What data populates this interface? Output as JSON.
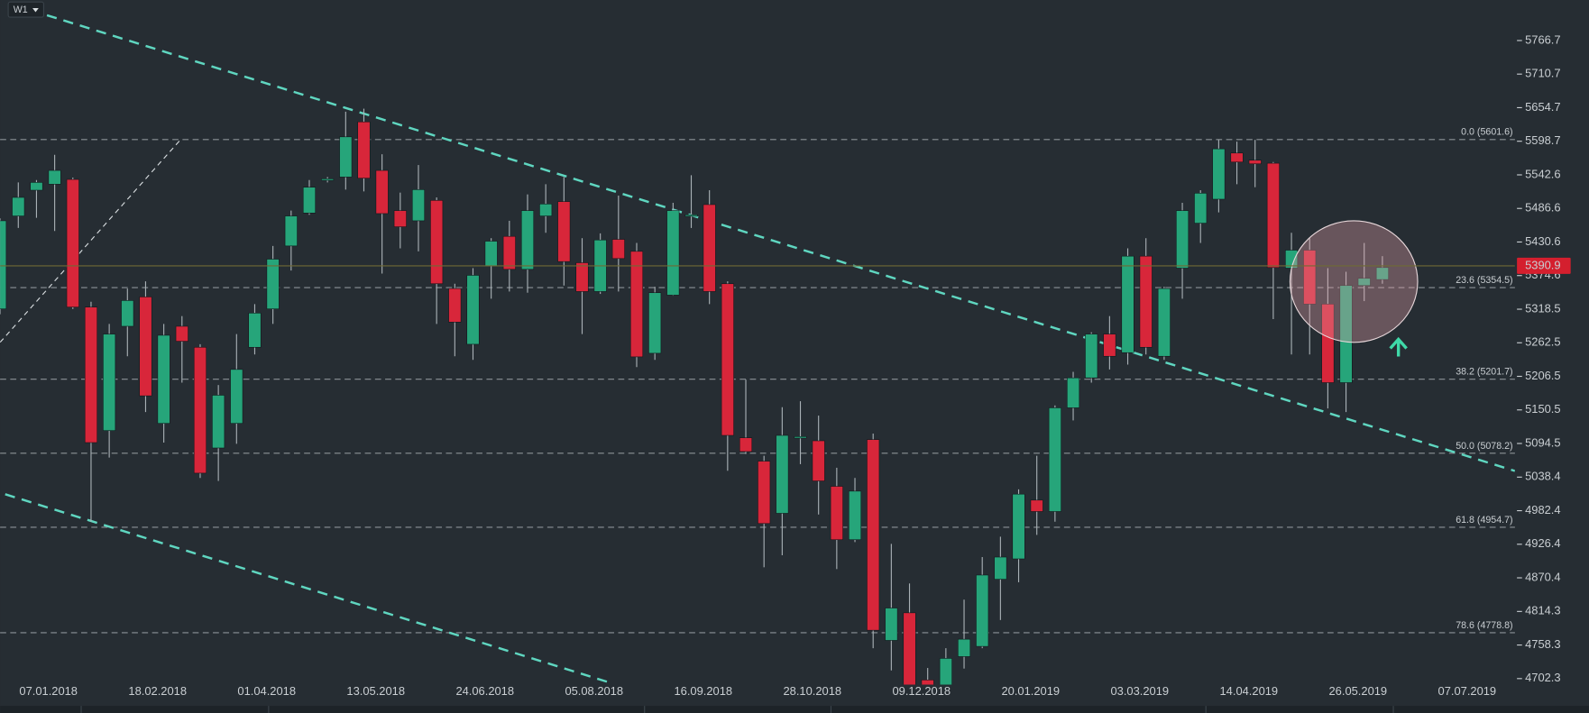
{
  "timeframe": "W1",
  "chart_data": {
    "type": "candlestick",
    "categories": [
      null,
      "07.01.2018",
      null,
      null,
      null,
      null,
      null,
      "18.02.2018",
      null,
      null,
      null,
      null,
      null,
      "01.04.2018",
      null,
      null,
      null,
      null,
      null,
      "13.05.2018",
      null,
      null,
      null,
      null,
      null,
      "24.06.2018",
      null,
      null,
      null,
      null,
      null,
      "05.08.2018",
      null,
      null,
      null,
      null,
      null,
      "16.09.2018",
      null,
      null,
      null,
      null,
      null,
      "28.10.2018",
      null,
      null,
      null,
      null,
      null,
      "09.12.2018",
      null,
      null,
      null,
      null,
      null,
      "20.01.2019",
      null,
      null,
      null,
      null,
      null,
      "03.03.2019",
      null,
      null,
      null,
      null,
      null,
      "14.04.2019",
      null,
      null,
      null,
      null,
      null,
      "26.05.2019",
      null,
      null,
      null,
      null,
      null,
      "07.07.2019"
    ],
    "open": [
      5319,
      5474,
      5517,
      5527,
      5535,
      5322,
      5116,
      5290,
      5339,
      5128,
      5290,
      5255,
      5087,
      5128,
      5255,
      5319,
      5424,
      5479,
      5534,
      5539,
      5631,
      5550,
      5483,
      5466,
      5500,
      5353,
      5260,
      5391,
      5440,
      5385,
      5474,
      5498,
      5396,
      5348,
      5435,
      5415,
      5245,
      5342,
      5474,
      5493,
      5361,
      5104,
      5065,
      4978,
      5104,
      5099,
      5023,
      4934,
      5101,
      4766,
      4812,
      4700,
      4690,
      4739,
      4756,
      4868,
      4902,
      5000,
      4981,
      5154,
      5204,
      5277,
      5246,
      5407,
      5240,
      5387,
      5462,
      5502,
      5579,
      5567,
      5562,
      5387,
      5417,
      5327,
      5196,
      5358,
      5368,
      null,
      null,
      null
    ],
    "high": [
      5470,
      5530,
      5534,
      5576,
      5538,
      5331,
      5294,
      5353,
      5365,
      5294,
      5307,
      5260,
      5192,
      5277,
      5327,
      5424,
      5483,
      5534,
      5539,
      5648,
      5653,
      5577,
      5513,
      5559,
      5505,
      5361,
      5387,
      5437,
      5466,
      5510,
      5527,
      5539,
      5437,
      5445,
      5508,
      5429,
      5356,
      5496,
      5542,
      5517,
      5365,
      5201,
      5074,
      5155,
      5165,
      5141,
      5054,
      5037,
      5111,
      4927,
      4861,
      4720,
      4753,
      4834,
      4905,
      4939,
      5018,
      5074,
      5158,
      5214,
      5280,
      5307,
      5420,
      5437,
      5356,
      5496,
      5517,
      5601,
      5598,
      5601,
      5564,
      5446,
      5437,
      5387,
      5381,
      5429,
      5407,
      null,
      null,
      null
    ],
    "low": [
      5310,
      5454,
      5471,
      5449,
      5319,
      4964,
      5071,
      5240,
      5147,
      5096,
      5196,
      5037,
      5032,
      5094,
      5243,
      5294,
      5383,
      5476,
      5530,
      5518,
      5515,
      5378,
      5420,
      5415,
      5294,
      5240,
      5234,
      5336,
      5348,
      5346,
      5446,
      5358,
      5277,
      5344,
      5348,
      5222,
      5234,
      5341,
      5454,
      5327,
      5049,
      5077,
      4888,
      4908,
      5060,
      4976,
      4885,
      4930,
      4753,
      4716,
      4686,
      4640,
      4680,
      4719,
      4753,
      4800,
      4863,
      4942,
      4964,
      5133,
      5196,
      5218,
      5226,
      5243,
      5234,
      5336,
      5429,
      5480,
      5527,
      5522,
      5302,
      5243,
      5243,
      5153,
      5147,
      5332,
      5361,
      null,
      null,
      null
    ],
    "close": [
      5466,
      5505,
      5530,
      5550,
      5322,
      5096,
      5277,
      5333,
      5174,
      5275,
      5265,
      5045,
      5175,
      5218,
      5312,
      5402,
      5474,
      5522,
      5536,
      5606,
      5537,
      5478,
      5456,
      5518,
      5361,
      5297,
      5375,
      5432,
      5385,
      5483,
      5494,
      5398,
      5348,
      5434,
      5403,
      5239,
      5346,
      5483,
      5476,
      5348,
      5108,
      5081,
      4961,
      5108,
      5106,
      5032,
      4934,
      5015,
      4783,
      4820,
      4686,
      4660,
      4736,
      4768,
      4875,
      4905,
      5010,
      4981,
      5154,
      5204,
      5277,
      5240,
      5407,
      5255,
      5353,
      5483,
      5512,
      5586,
      5564,
      5561,
      5388,
      5417,
      5327,
      5196,
      5358,
      5370,
      5388,
      null,
      null,
      null
    ],
    "up_color": "#26a57a",
    "down_color": "#d8263a",
    "ylim": [
      4692.2,
      5834.3
    ],
    "yticks": [
      5766.7,
      5710.7,
      5654.7,
      5598.7,
      5542.6,
      5486.6,
      5430.6,
      5374.6,
      5318.5,
      5262.5,
      5206.5,
      5150.5,
      5094.5,
      5038.4,
      4982.4,
      4926.4,
      4870.4,
      4814.3,
      4758.3,
      4702.3
    ],
    "current_price": 5390.9,
    "fib_levels": [
      {
        "value": 5601.6,
        "label": "0.0 (5601.6)"
      },
      {
        "value": 5354.5,
        "label": "23.6 (5354.5)"
      },
      {
        "value": 5201.7,
        "label": "38.2 (5201.7)"
      },
      {
        "value": 5078.2,
        "label": "50.0 (5078.2)"
      },
      {
        "value": 4954.7,
        "label": "61.8 (4954.7)"
      },
      {
        "value": 4778.8,
        "label": "78.6 (4778.8)"
      }
    ]
  }
}
